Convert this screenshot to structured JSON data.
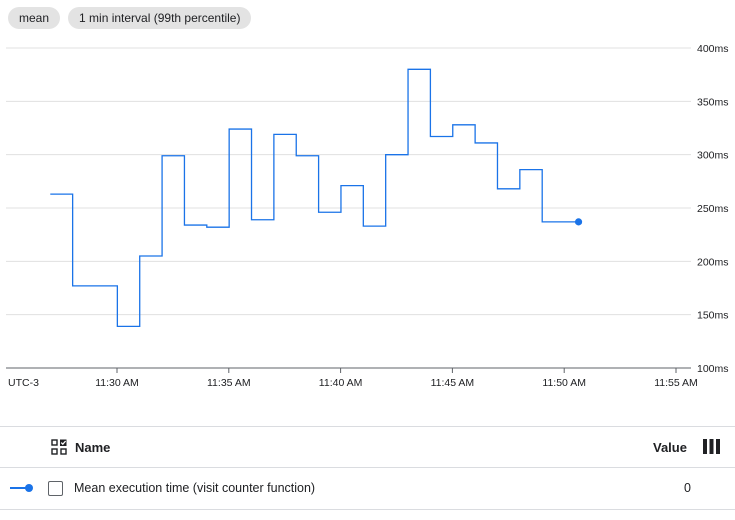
{
  "chips": [
    "mean",
    "1 min interval (99th percentile)"
  ],
  "chart_data": {
    "type": "line",
    "x_axis_timezone": "UTC-3",
    "x_range": [
      "11:27",
      "11:55"
    ],
    "x_ticks": [
      "11:30 AM",
      "11:35 AM",
      "11:40 AM",
      "11:45 AM",
      "11:50 AM",
      "11:55 AM"
    ],
    "y_unit": "ms",
    "ylim": [
      100,
      400
    ],
    "y_ticks": [
      "100ms",
      "150ms",
      "200ms",
      "250ms",
      "300ms",
      "350ms",
      "400ms"
    ],
    "grid": true,
    "series": [
      {
        "name": "Mean execution time (visit counter function)",
        "color": "#1a73e8",
        "step": true,
        "points": [
          {
            "t": "11:28",
            "v": 263
          },
          {
            "t": "11:29",
            "v": 177
          },
          {
            "t": "11:30",
            "v": 177
          },
          {
            "t": "11:31",
            "v": 139
          },
          {
            "t": "11:32",
            "v": 205
          },
          {
            "t": "11:33",
            "v": 299
          },
          {
            "t": "11:34",
            "v": 234
          },
          {
            "t": "11:35",
            "v": 232
          },
          {
            "t": "11:36",
            "v": 324
          },
          {
            "t": "11:37",
            "v": 239
          },
          {
            "t": "11:38",
            "v": 319
          },
          {
            "t": "11:39",
            "v": 299
          },
          {
            "t": "11:40",
            "v": 246
          },
          {
            "t": "11:41",
            "v": 271
          },
          {
            "t": "11:42",
            "v": 233
          },
          {
            "t": "11:43",
            "v": 300
          },
          {
            "t": "11:44",
            "v": 380
          },
          {
            "t": "11:45",
            "v": 317
          },
          {
            "t": "11:46",
            "v": 328
          },
          {
            "t": "11:47",
            "v": 311
          },
          {
            "t": "11:48",
            "v": 268
          },
          {
            "t": "11:49",
            "v": 286
          },
          {
            "t": "11:50",
            "v": 237
          },
          {
            "t": "11:51",
            "v": 237
          }
        ]
      }
    ]
  },
  "legend": {
    "name_header": "Name",
    "value_header": "Value",
    "rows": [
      {
        "label": "Mean execution time (visit counter function)",
        "value": "0"
      }
    ]
  }
}
